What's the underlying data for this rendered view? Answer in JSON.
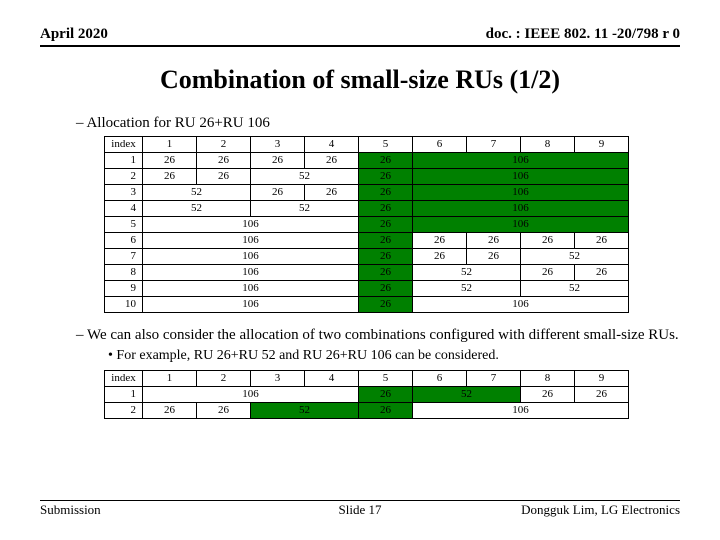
{
  "header": {
    "left": "April 2020",
    "right": "doc. : IEEE 802. 11 -20/798 r 0"
  },
  "title": "Combination of small-size RUs (1/2)",
  "section1": "Allocation for RU 26+RU 106",
  "table1": {
    "index_label": "index",
    "col_headers": [
      "1",
      "2",
      "3",
      "4",
      "5",
      "6",
      "7",
      "8",
      "9"
    ],
    "rows": [
      {
        "idx": "1",
        "cells": [
          {
            "t": "26",
            "s": 1
          },
          {
            "t": "26",
            "s": 1
          },
          {
            "t": "26",
            "s": 1
          },
          {
            "t": "26",
            "s": 1
          },
          {
            "t": "26",
            "s": 1,
            "g": 1
          },
          {
            "t": "106",
            "s": 4,
            "g": 1
          }
        ]
      },
      {
        "idx": "2",
        "cells": [
          {
            "t": "26",
            "s": 1
          },
          {
            "t": "26",
            "s": 1
          },
          {
            "t": "52",
            "s": 2
          },
          {
            "t": "26",
            "s": 1,
            "g": 1
          },
          {
            "t": "106",
            "s": 4,
            "g": 1
          }
        ]
      },
      {
        "idx": "3",
        "cells": [
          {
            "t": "52",
            "s": 2
          },
          {
            "t": "26",
            "s": 1
          },
          {
            "t": "26",
            "s": 1
          },
          {
            "t": "26",
            "s": 1,
            "g": 1
          },
          {
            "t": "106",
            "s": 4,
            "g": 1
          }
        ]
      },
      {
        "idx": "4",
        "cells": [
          {
            "t": "52",
            "s": 2
          },
          {
            "t": "52",
            "s": 2
          },
          {
            "t": "26",
            "s": 1,
            "g": 1
          },
          {
            "t": "106",
            "s": 4,
            "g": 1
          }
        ]
      },
      {
        "idx": "5",
        "cells": [
          {
            "t": "106",
            "s": 4
          },
          {
            "t": "26",
            "s": 1,
            "g": 1
          },
          {
            "t": "106",
            "s": 4,
            "g": 1
          }
        ]
      },
      {
        "idx": "6",
        "cells": [
          {
            "t": "106",
            "s": 4
          },
          {
            "t": "26",
            "s": 1,
            "g": 1
          },
          {
            "t": "26",
            "s": 1
          },
          {
            "t": "26",
            "s": 1
          },
          {
            "t": "26",
            "s": 1
          },
          {
            "t": "26",
            "s": 1
          }
        ]
      },
      {
        "idx": "7",
        "cells": [
          {
            "t": "106",
            "s": 4
          },
          {
            "t": "26",
            "s": 1,
            "g": 1
          },
          {
            "t": "26",
            "s": 1
          },
          {
            "t": "26",
            "s": 1
          },
          {
            "t": "52",
            "s": 2
          }
        ]
      },
      {
        "idx": "8",
        "cells": [
          {
            "t": "106",
            "s": 4
          },
          {
            "t": "26",
            "s": 1,
            "g": 1
          },
          {
            "t": "52",
            "s": 2
          },
          {
            "t": "26",
            "s": 1
          },
          {
            "t": "26",
            "s": 1
          }
        ]
      },
      {
        "idx": "9",
        "cells": [
          {
            "t": "106",
            "s": 4
          },
          {
            "t": "26",
            "s": 1,
            "g": 1
          },
          {
            "t": "52",
            "s": 2
          },
          {
            "t": "52",
            "s": 2
          }
        ]
      },
      {
        "idx": "10",
        "cells": [
          {
            "t": "106",
            "s": 4
          },
          {
            "t": "26",
            "s": 1,
            "g": 1
          },
          {
            "t": "106",
            "s": 4
          }
        ]
      }
    ]
  },
  "section2": "We can also consider the allocation of two combinations configured with different small-size RUs.",
  "bullet2": "For example,  RU 26+RU 52 and RU 26+RU 106  can be considered.",
  "table2": {
    "index_label": "index",
    "col_headers": [
      "1",
      "2",
      "3",
      "4",
      "5",
      "6",
      "7",
      "8",
      "9"
    ],
    "rows": [
      {
        "idx": "1",
        "cells": [
          {
            "t": "106",
            "s": 4
          },
          {
            "t": "26",
            "s": 1,
            "g": 1
          },
          {
            "t": "52",
            "s": 2,
            "g": 1
          },
          {
            "t": "26",
            "s": 1
          },
          {
            "t": "26",
            "s": 1
          }
        ]
      },
      {
        "idx": "2",
        "cells": [
          {
            "t": "26",
            "s": 1
          },
          {
            "t": "26",
            "s": 1
          },
          {
            "t": "52",
            "s": 2,
            "g": 1
          },
          {
            "t": "26",
            "s": 1,
            "g": 1
          },
          {
            "t": "106",
            "s": 4
          }
        ]
      }
    ]
  },
  "footer": {
    "left": "Submission",
    "mid": "Slide 17",
    "right": "Dongguk Lim, LG Electronics"
  },
  "colors": {
    "green": "#008000"
  }
}
